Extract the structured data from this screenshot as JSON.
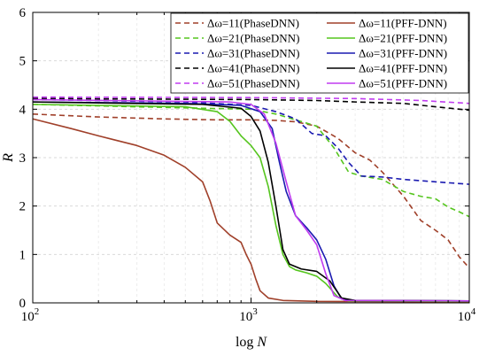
{
  "chart_data": {
    "type": "line",
    "xlabel": "log N",
    "ylabel": "R",
    "xscale": "log",
    "xlim": [
      100,
      10000
    ],
    "ylim": [
      0,
      6
    ],
    "grid": true,
    "legend_placement": "top-right",
    "x_ticks": [
      {
        "value": 100,
        "base": "10",
        "exp": "2"
      },
      {
        "value": 1000,
        "base": "10",
        "exp": "3"
      },
      {
        "value": 10000,
        "base": "10",
        "exp": "4"
      }
    ],
    "y_ticks": [
      "0",
      "1",
      "2",
      "3",
      "4",
      "5",
      "6"
    ],
    "series": [
      {
        "name": "Δω=11(PhaseDNN)",
        "color": "#a0402a",
        "dash": true,
        "points": [
          [
            100,
            3.9
          ],
          [
            200,
            3.84
          ],
          [
            400,
            3.8
          ],
          [
            700,
            3.78
          ],
          [
            1000,
            3.78
          ],
          [
            1300,
            3.77
          ],
          [
            1600,
            3.74
          ],
          [
            2000,
            3.65
          ],
          [
            2500,
            3.4
          ],
          [
            3000,
            3.1
          ],
          [
            3500,
            2.95
          ],
          [
            4000,
            2.7
          ],
          [
            5000,
            2.2
          ],
          [
            6000,
            1.7
          ],
          [
            7000,
            1.5
          ],
          [
            8000,
            1.3
          ],
          [
            9000,
            0.95
          ],
          [
            10000,
            0.72
          ]
        ]
      },
      {
        "name": "Δω=21(PhaseDNN)",
        "color": "#55c51e",
        "dash": true,
        "points": [
          [
            100,
            4.1
          ],
          [
            300,
            4.05
          ],
          [
            600,
            4.02
          ],
          [
            1000,
            4.0
          ],
          [
            1300,
            3.9
          ],
          [
            1600,
            3.78
          ],
          [
            2000,
            3.65
          ],
          [
            2400,
            3.2
          ],
          [
            2800,
            2.7
          ],
          [
            3200,
            2.62
          ],
          [
            4000,
            2.55
          ],
          [
            5000,
            2.3
          ],
          [
            6000,
            2.2
          ],
          [
            7000,
            2.15
          ],
          [
            8000,
            1.98
          ],
          [
            9000,
            1.88
          ],
          [
            10000,
            1.78
          ]
        ]
      },
      {
        "name": "Δω=31(PhaseDNN)",
        "color": "#1a1ab0",
        "dash": true,
        "points": [
          [
            100,
            4.2
          ],
          [
            500,
            4.15
          ],
          [
            1000,
            4.08
          ],
          [
            1300,
            3.95
          ],
          [
            1600,
            3.8
          ],
          [
            1900,
            3.5
          ],
          [
            2200,
            3.45
          ],
          [
            2500,
            3.2
          ],
          [
            2800,
            2.9
          ],
          [
            3200,
            2.62
          ],
          [
            4000,
            2.6
          ],
          [
            5000,
            2.55
          ],
          [
            7000,
            2.5
          ],
          [
            10000,
            2.45
          ]
        ]
      },
      {
        "name": "Δω=41(PhaseDNN)",
        "color": "#000000",
        "dash": true,
        "points": [
          [
            100,
            4.22
          ],
          [
            1000,
            4.2
          ],
          [
            2000,
            4.18
          ],
          [
            3000,
            4.15
          ],
          [
            5000,
            4.12
          ],
          [
            7000,
            4.05
          ],
          [
            10000,
            3.98
          ]
        ]
      },
      {
        "name": "Δω=51(PhaseDNN)",
        "color": "#c03cf0",
        "dash": true,
        "points": [
          [
            100,
            4.25
          ],
          [
            1000,
            4.24
          ],
          [
            3000,
            4.22
          ],
          [
            6000,
            4.18
          ],
          [
            10000,
            4.12
          ]
        ]
      },
      {
        "name": "Δω=11(PFF-DNN)",
        "color": "#a0402a",
        "dash": false,
        "points": [
          [
            100,
            3.8
          ],
          [
            150,
            3.6
          ],
          [
            200,
            3.45
          ],
          [
            300,
            3.25
          ],
          [
            400,
            3.05
          ],
          [
            500,
            2.8
          ],
          [
            600,
            2.5
          ],
          [
            650,
            2.1
          ],
          [
            700,
            1.65
          ],
          [
            800,
            1.4
          ],
          [
            900,
            1.25
          ],
          [
            950,
            1.0
          ],
          [
            1000,
            0.8
          ],
          [
            1050,
            0.5
          ],
          [
            1100,
            0.25
          ],
          [
            1200,
            0.1
          ],
          [
            1400,
            0.05
          ],
          [
            2000,
            0.03
          ],
          [
            10000,
            0.02
          ]
        ]
      },
      {
        "name": "Δω=21(PFF-DNN)",
        "color": "#55c51e",
        "dash": false,
        "points": [
          [
            100,
            4.1
          ],
          [
            500,
            4.05
          ],
          [
            700,
            3.95
          ],
          [
            800,
            3.75
          ],
          [
            900,
            3.45
          ],
          [
            1000,
            3.25
          ],
          [
            1100,
            3.0
          ],
          [
            1200,
            2.4
          ],
          [
            1300,
            1.6
          ],
          [
            1400,
            1.0
          ],
          [
            1500,
            0.75
          ],
          [
            1600,
            0.68
          ],
          [
            1800,
            0.62
          ],
          [
            2000,
            0.55
          ],
          [
            2200,
            0.4
          ],
          [
            2500,
            0.12
          ],
          [
            2800,
            0.04
          ],
          [
            10000,
            0.03
          ]
        ]
      },
      {
        "name": "Δω=31(PFF-DNN)",
        "color": "#1a1ab0",
        "dash": false,
        "points": [
          [
            100,
            4.15
          ],
          [
            500,
            4.12
          ],
          [
            900,
            4.08
          ],
          [
            1100,
            3.95
          ],
          [
            1250,
            3.6
          ],
          [
            1350,
            2.9
          ],
          [
            1450,
            2.3
          ],
          [
            1600,
            1.8
          ],
          [
            1800,
            1.55
          ],
          [
            2000,
            1.3
          ],
          [
            2200,
            0.9
          ],
          [
            2400,
            0.35
          ],
          [
            2600,
            0.08
          ],
          [
            3000,
            0.05
          ],
          [
            10000,
            0.04
          ]
        ]
      },
      {
        "name": "Δω=41(PFF-DNN)",
        "color": "#000000",
        "dash": false,
        "points": [
          [
            100,
            4.15
          ],
          [
            600,
            4.1
          ],
          [
            900,
            4.02
          ],
          [
            1000,
            3.85
          ],
          [
            1100,
            3.55
          ],
          [
            1200,
            2.9
          ],
          [
            1300,
            2.0
          ],
          [
            1400,
            1.1
          ],
          [
            1500,
            0.8
          ],
          [
            1700,
            0.7
          ],
          [
            2000,
            0.65
          ],
          [
            2300,
            0.45
          ],
          [
            2600,
            0.1
          ],
          [
            3000,
            0.05
          ],
          [
            10000,
            0.04
          ]
        ]
      },
      {
        "name": "Δω=51(PFF-DNN)",
        "color": "#c03cf0",
        "dash": false,
        "points": [
          [
            100,
            4.2
          ],
          [
            800,
            4.15
          ],
          [
            1000,
            4.1
          ],
          [
            1150,
            3.9
          ],
          [
            1300,
            3.3
          ],
          [
            1450,
            2.5
          ],
          [
            1600,
            1.8
          ],
          [
            1800,
            1.5
          ],
          [
            2000,
            1.2
          ],
          [
            2200,
            0.6
          ],
          [
            2400,
            0.15
          ],
          [
            2700,
            0.05
          ],
          [
            10000,
            0.04
          ]
        ]
      }
    ]
  }
}
